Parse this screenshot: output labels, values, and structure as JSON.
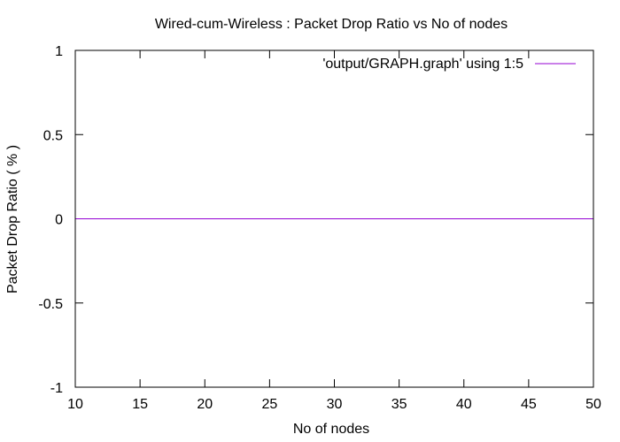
{
  "chart_data": {
    "type": "line",
    "title": "Wired-cum-Wireless : Packet Drop Ratio vs No of nodes",
    "xlabel": "No of nodes",
    "ylabel": "Packet Drop Ratio ( % )",
    "xlim": [
      10,
      50
    ],
    "ylim": [
      -1,
      1
    ],
    "x_ticks": [
      10,
      15,
      20,
      25,
      30,
      35,
      40,
      45,
      50
    ],
    "y_ticks": [
      -1,
      -0.5,
      0,
      0.5,
      1
    ],
    "x_tick_labels": [
      "10",
      "15",
      "20",
      "25",
      "30",
      "35",
      "40",
      "45",
      "50"
    ],
    "y_tick_labels": [
      "-1",
      "-0.5",
      "0",
      "0.5",
      "1"
    ],
    "grid": false,
    "legend_position": "top-right",
    "series": [
      {
        "name": "'output/GRAPH.graph' using 1:5",
        "color": "#9400d3",
        "x": [
          10,
          50
        ],
        "y": [
          0,
          0
        ]
      }
    ]
  }
}
